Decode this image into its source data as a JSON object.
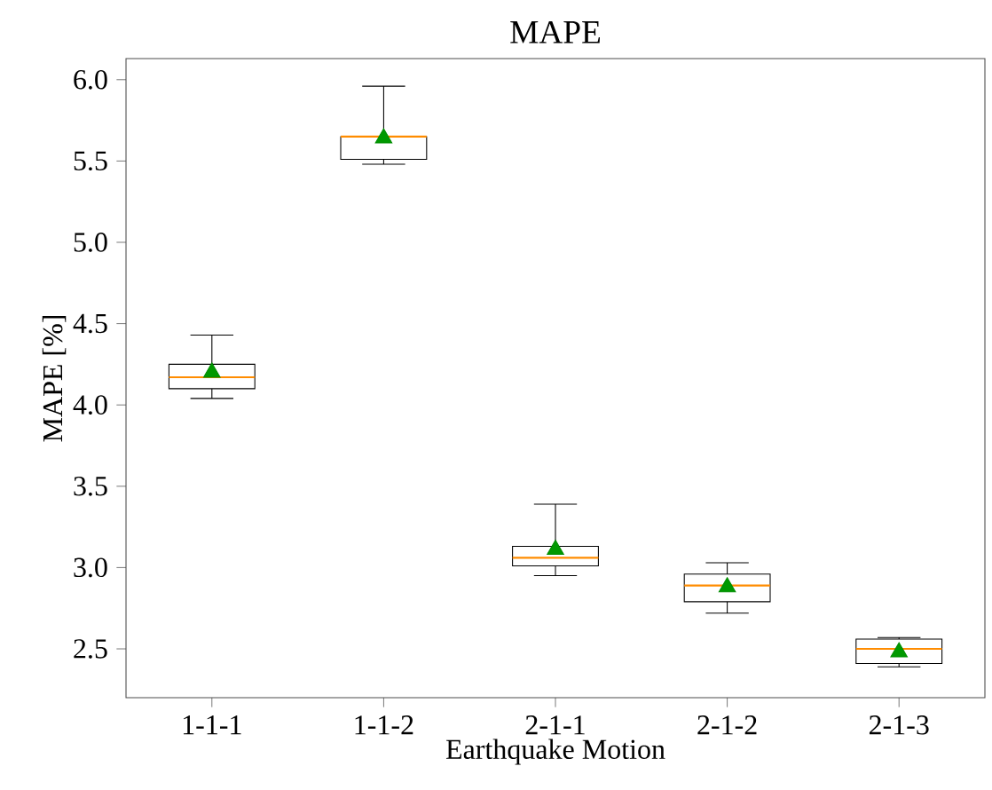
{
  "chart_data": {
    "type": "box",
    "title": "MAPE",
    "xlabel": "Earthquake Motion",
    "ylabel": "MAPE [%]",
    "categories": [
      "1-1-1",
      "1-1-2",
      "2-1-1",
      "2-1-2",
      "2-1-3"
    ],
    "boxes": [
      {
        "low": 4.04,
        "q1": 4.1,
        "median": 4.17,
        "q3": 4.25,
        "high": 4.43,
        "mean": 4.2
      },
      {
        "low": 5.48,
        "q1": 5.51,
        "median": 5.65,
        "q3": 5.65,
        "high": 5.96,
        "mean": 5.64
      },
      {
        "low": 2.95,
        "q1": 3.01,
        "median": 3.06,
        "q3": 3.13,
        "high": 3.39,
        "mean": 3.11
      },
      {
        "low": 2.72,
        "q1": 2.79,
        "median": 2.89,
        "q3": 2.96,
        "high": 3.03,
        "mean": 2.88
      },
      {
        "low": 2.39,
        "q1": 2.41,
        "median": 2.5,
        "q3": 2.56,
        "high": 2.57,
        "mean": 2.48
      }
    ],
    "ylim": [
      2.2,
      6.13
    ],
    "yticks": [
      {
        "value": 2.5,
        "label": "2.5"
      },
      {
        "value": 3.0,
        "label": "3.0"
      },
      {
        "value": 3.5,
        "label": "3.5"
      },
      {
        "value": 4.0,
        "label": "4.0"
      },
      {
        "value": 4.5,
        "label": "4.5"
      },
      {
        "value": 5.0,
        "label": "5.0"
      },
      {
        "value": 5.5,
        "label": "5.5"
      },
      {
        "value": 6.0,
        "label": "6.0"
      }
    ],
    "grid": false
  }
}
